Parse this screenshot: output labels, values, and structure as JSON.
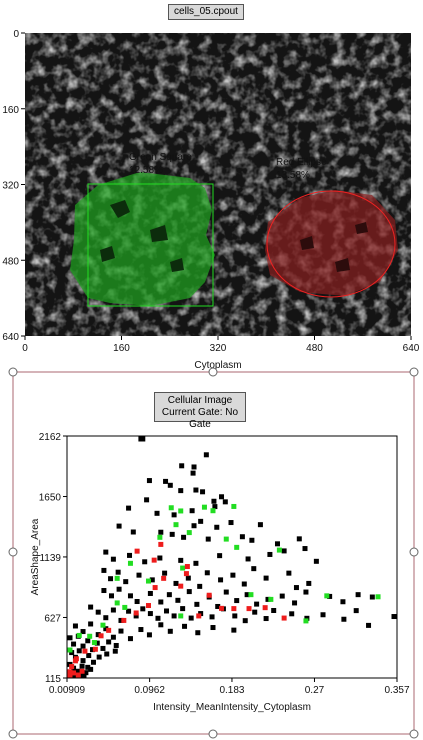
{
  "image_panel": {
    "filename": "cells_05.cpout",
    "x_axis_label": "Cytoplasm",
    "x_ticks": [
      "0",
      "160",
      "320",
      "480",
      "640"
    ],
    "y_ticks": [
      "0",
      "160",
      "320",
      "480",
      "640"
    ],
    "gates": [
      {
        "name": "Green Square",
        "percent": "12.58%",
        "color": "#22cc22"
      },
      {
        "name": "Red Ellipse",
        "percent": "13.58%",
        "color": "#ee2222"
      }
    ]
  },
  "plot_panel": {
    "title_line1": "Cellular Image",
    "title_line2": "Current Gate: No Gate",
    "frame_color": "#c79aa0"
  },
  "chart_data": {
    "type": "scatter",
    "title": "",
    "xlabel": "Intensity_MeanIntensity_Cytoplasm",
    "ylabel": "AreaShape_Area",
    "xlim": [
      0.00909,
      0.357
    ],
    "ylim": [
      115,
      2162
    ],
    "x_tick_labels": [
      "0.00909",
      "0.0962",
      "0.183",
      "0.27",
      "0.357"
    ],
    "y_tick_labels": [
      "115",
      "627",
      "1139",
      "1650",
      "2162"
    ],
    "x_ticks": [
      0.00909,
      0.0962,
      0.183,
      0.27,
      0.357
    ],
    "y_ticks": [
      115,
      627,
      1139,
      1650,
      2162
    ],
    "series": [
      {
        "color": "#000000",
        "points": [
          [
            0.087,
            2140
          ],
          [
            0.089,
            2148
          ],
          [
            0.13,
            1910
          ],
          [
            0.142,
            1848
          ],
          [
            0.143,
            1900
          ],
          [
            0.156,
            2003
          ],
          [
            0.096,
            1785
          ],
          [
            0.113,
            1778
          ],
          [
            0.118,
            1745
          ],
          [
            0.129,
            1700
          ],
          [
            0.145,
            1705
          ],
          [
            0.152,
            1690
          ],
          [
            0.164,
            1610
          ],
          [
            0.172,
            1648
          ],
          [
            0.176,
            1605
          ],
          [
            0.074,
            1552
          ],
          [
            0.093,
            1622
          ],
          [
            0.104,
            1508
          ],
          [
            0.141,
            1530
          ],
          [
            0.165,
            1565
          ],
          [
            0.122,
            1495
          ],
          [
            0.143,
            1403
          ],
          [
            0.15,
            1440
          ],
          [
            0.167,
            1390
          ],
          [
            0.182,
            1430
          ],
          [
            0.213,
            1412
          ],
          [
            0.064,
            1400
          ],
          [
            0.079,
            1350
          ],
          [
            0.108,
            1348
          ],
          [
            0.12,
            1330
          ],
          [
            0.132,
            1305
          ],
          [
            0.158,
            1290
          ],
          [
            0.194,
            1310
          ],
          [
            0.204,
            1280
          ],
          [
            0.231,
            1250
          ],
          [
            0.254,
            1292
          ],
          [
            0.05,
            1180
          ],
          [
            0.058,
            1120
          ],
          [
            0.075,
            1152
          ],
          [
            0.091,
            1098
          ],
          [
            0.107,
            1130
          ],
          [
            0.129,
            1110
          ],
          [
            0.145,
            1085
          ],
          [
            0.17,
            1150
          ],
          [
            0.2,
            1122
          ],
          [
            0.223,
            1160
          ],
          [
            0.238,
            1190
          ],
          [
            0.26,
            1210
          ],
          [
            0.272,
            1102
          ],
          [
            0.048,
            1025
          ],
          [
            0.055,
            955
          ],
          [
            0.063,
            1010
          ],
          [
            0.071,
            930
          ],
          [
            0.085,
            985
          ],
          [
            0.099,
            945
          ],
          [
            0.112,
            1002
          ],
          [
            0.124,
            915
          ],
          [
            0.137,
            960
          ],
          [
            0.149,
            890
          ],
          [
            0.157,
            1005
          ],
          [
            0.171,
            945
          ],
          [
            0.184,
            985
          ],
          [
            0.196,
            910
          ],
          [
            0.206,
            1040
          ],
          [
            0.219,
            960
          ],
          [
            0.243,
            1002
          ],
          [
            0.251,
            880
          ],
          [
            0.264,
            915
          ],
          [
            0.048,
            855
          ],
          [
            0.056,
            810
          ],
          [
            0.064,
            866
          ],
          [
            0.076,
            810
          ],
          [
            0.083,
            762
          ],
          [
            0.097,
            830
          ],
          [
            0.108,
            758
          ],
          [
            0.117,
            820
          ],
          [
            0.126,
            772
          ],
          [
            0.138,
            846
          ],
          [
            0.146,
            738
          ],
          [
            0.159,
            800
          ],
          [
            0.168,
            720
          ],
          [
            0.177,
            842
          ],
          [
            0.188,
            770
          ],
          [
            0.199,
            820
          ],
          [
            0.209,
            740
          ],
          [
            0.221,
            780
          ],
          [
            0.236,
            808
          ],
          [
            0.249,
            750
          ],
          [
            0.261,
            842
          ],
          [
            0.286,
            805
          ],
          [
            0.3,
            760
          ],
          [
            0.316,
            820
          ],
          [
            0.331,
            800
          ],
          [
            0.034,
            715
          ],
          [
            0.042,
            672
          ],
          [
            0.05,
            625
          ],
          [
            0.058,
            690
          ],
          [
            0.066,
            602
          ],
          [
            0.074,
            680
          ],
          [
            0.082,
            640
          ],
          [
            0.089,
            700
          ],
          [
            0.097,
            660
          ],
          [
            0.105,
            620
          ],
          [
            0.114,
            682
          ],
          [
            0.122,
            640
          ],
          [
            0.131,
            702
          ],
          [
            0.14,
            622
          ],
          [
            0.15,
            660
          ],
          [
            0.162,
            632
          ],
          [
            0.174,
            700
          ],
          [
            0.186,
            640
          ],
          [
            0.197,
            600
          ],
          [
            0.207,
            672
          ],
          [
            0.219,
            618
          ],
          [
            0.227,
            686
          ],
          [
            0.246,
            658
          ],
          [
            0.262,
            620
          ],
          [
            0.279,
            650
          ],
          [
            0.301,
            612
          ],
          [
            0.314,
            685
          ],
          [
            0.327,
            560
          ],
          [
            0.355,
            635
          ],
          [
            0.018,
            555
          ],
          [
            0.026,
            508
          ],
          [
            0.034,
            572
          ],
          [
            0.042,
            482
          ],
          [
            0.05,
            532
          ],
          [
            0.058,
            460
          ],
          [
            0.066,
            512
          ],
          [
            0.076,
            448
          ],
          [
            0.087,
            525
          ],
          [
            0.096,
            480
          ],
          [
            0.108,
            565
          ],
          [
            0.118,
            510
          ],
          [
            0.133,
            552
          ],
          [
            0.147,
            498
          ],
          [
            0.163,
            542
          ],
          [
            0.185,
            520
          ],
          [
            0.011,
            455
          ],
          [
            0.016,
            402
          ],
          [
            0.021,
            468
          ],
          [
            0.026,
            385
          ],
          [
            0.031,
            430
          ],
          [
            0.036,
            355
          ],
          [
            0.041,
            410
          ],
          [
            0.047,
            365
          ],
          [
            0.053,
            420
          ],
          [
            0.061,
            390
          ],
          [
            0.014,
            330
          ],
          [
            0.018,
            290
          ],
          [
            0.022,
            345
          ],
          [
            0.026,
            262
          ],
          [
            0.032,
            305
          ],
          [
            0.037,
            248
          ],
          [
            0.043,
            292
          ],
          [
            0.051,
            318
          ],
          [
            0.06,
            342
          ],
          [
            0.012,
            230
          ],
          [
            0.016,
            198
          ],
          [
            0.021,
            172
          ],
          [
            0.025,
            215
          ],
          [
            0.029,
            160
          ],
          [
            0.034,
            188
          ],
          [
            0.011,
            150
          ],
          [
            0.014,
            128
          ],
          [
            0.019,
            118
          ],
          [
            0.023,
            140
          ],
          [
            0.027,
            122
          ],
          [
            0.031,
            205
          ]
        ]
      },
      {
        "color": "#22dd22",
        "points": [
          [
            0.119,
            1555
          ],
          [
            0.129,
            1528
          ],
          [
            0.154,
            1560
          ],
          [
            0.163,
            1530
          ],
          [
            0.185,
            1566
          ],
          [
            0.124,
            1412
          ],
          [
            0.107,
            1305
          ],
          [
            0.138,
            1345
          ],
          [
            0.177,
            1290
          ],
          [
            0.188,
            1220
          ],
          [
            0.233,
            1197
          ],
          [
            0.076,
            1085
          ],
          [
            0.131,
            1045
          ],
          [
            0.062,
            958
          ],
          [
            0.095,
            935
          ],
          [
            0.203,
            820
          ],
          [
            0.224,
            780
          ],
          [
            0.283,
            810
          ],
          [
            0.062,
            750
          ],
          [
            0.129,
            640
          ],
          [
            0.261,
            598
          ],
          [
            0.337,
            802
          ],
          [
            0.07,
            712
          ],
          [
            0.022,
            475
          ],
          [
            0.033,
            468
          ],
          [
            0.012,
            352
          ],
          [
            0.038,
            415
          ],
          [
            0.047,
            562
          ]
        ]
      },
      {
        "color": "#ee1c1c",
        "points": [
          [
            0.083,
            1188
          ],
          [
            0.108,
            1245
          ],
          [
            0.101,
            1112
          ],
          [
            0.136,
            1058
          ],
          [
            0.111,
            958
          ],
          [
            0.135,
            998
          ],
          [
            0.129,
            892
          ],
          [
            0.102,
            880
          ],
          [
            0.095,
            728
          ],
          [
            0.159,
            815
          ],
          [
            0.172,
            704
          ],
          [
            0.185,
            702
          ],
          [
            0.201,
            702
          ],
          [
            0.218,
            710
          ],
          [
            0.238,
            622
          ],
          [
            0.148,
            640
          ],
          [
            0.069,
            602
          ],
          [
            0.082,
            665
          ],
          [
            0.053,
            518
          ],
          [
            0.045,
            472
          ],
          [
            0.039,
            358
          ],
          [
            0.028,
            342
          ],
          [
            0.019,
            278
          ],
          [
            0.014,
            212
          ],
          [
            0.012,
            168
          ],
          [
            0.011,
            128
          ],
          [
            0.016,
            158
          ],
          [
            0.021,
            132
          ],
          [
            0.025,
            172
          ],
          [
            0.018,
            260
          ]
        ]
      }
    ]
  }
}
